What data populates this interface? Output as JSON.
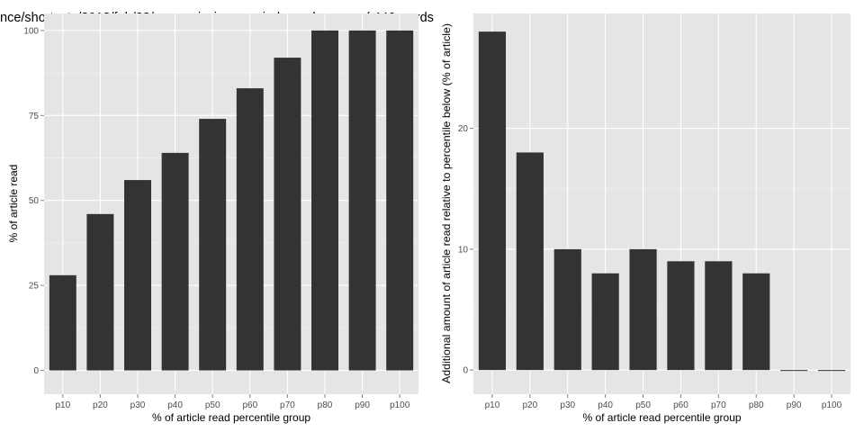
{
  "title": "nce/shortcuts/2013/feb/28/mars-mission-married-couple-space ( 446 words",
  "chart_data": [
    {
      "type": "bar",
      "title": "nce/shortcuts/2013/feb/28/mars-mission-married-couple-space ( 446 words",
      "categories": [
        "p10",
        "p20",
        "p30",
        "p40",
        "p50",
        "p60",
        "p70",
        "p80",
        "p90",
        "p100"
      ],
      "values": [
        28,
        46,
        56,
        64,
        74,
        83,
        92,
        100,
        100,
        100
      ],
      "xlabel": "% of article read percentile group",
      "ylabel": "% of article read",
      "ylim": [
        -7,
        105
      ],
      "yticks": [
        0,
        25,
        50,
        75,
        100
      ],
      "grid": true,
      "colors": {
        "panel": "#e5e5e5",
        "grid": "#ffffff",
        "bar": "#333333"
      }
    },
    {
      "type": "bar",
      "title": "",
      "categories": [
        "p10",
        "p20",
        "p30",
        "p40",
        "p50",
        "p60",
        "p70",
        "p80",
        "p90",
        "p100"
      ],
      "values": [
        28,
        18,
        10,
        8,
        10,
        9,
        9,
        8,
        0,
        0
      ],
      "xlabel": "% of article read percentile group",
      "ylabel": "Additional amount of article read relative to percentile below (% of article)",
      "ylim": [
        -2,
        29.5
      ],
      "yticks": [
        0,
        10,
        20
      ],
      "grid": true,
      "colors": {
        "panel": "#e5e5e5",
        "grid": "#ffffff",
        "bar": "#333333"
      }
    }
  ]
}
